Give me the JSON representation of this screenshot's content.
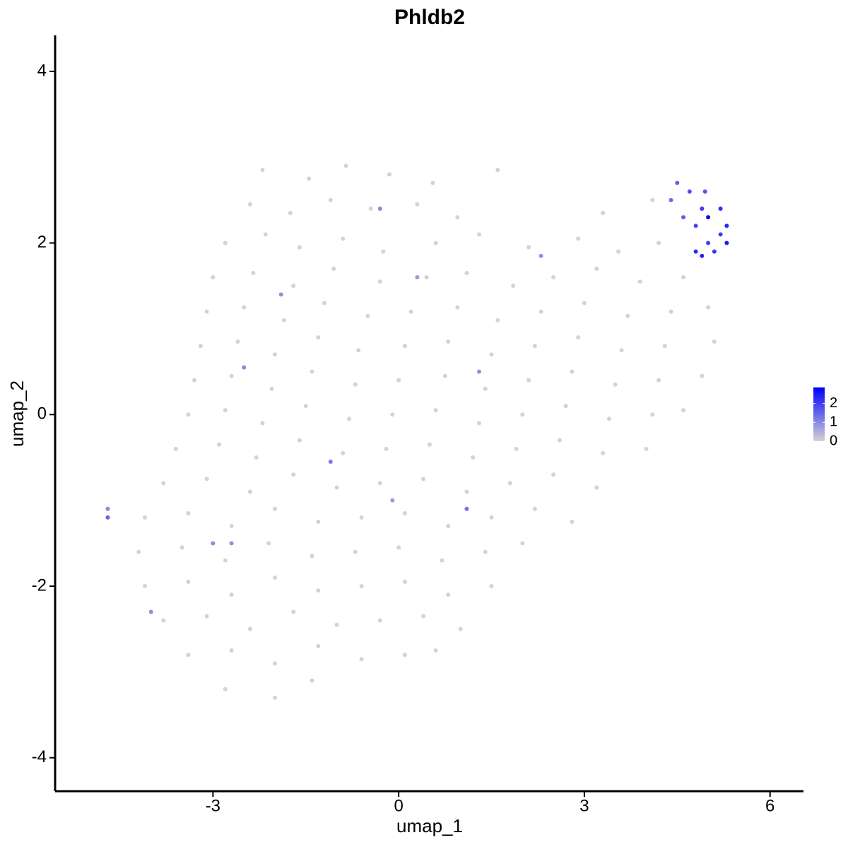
{
  "chart_data": {
    "type": "scatter",
    "title": "Phldb2",
    "x_label": "umap_1",
    "y_label": "umap_2",
    "xlim": [
      -5.55,
      6.54
    ],
    "ylim": [
      -4.39,
      4.42
    ],
    "xticks": [
      -3,
      0,
      3,
      6
    ],
    "yticks": [
      -4,
      -2,
      0,
      2,
      4
    ],
    "low_color": "#d3d3d3",
    "high_color": "#0000ff",
    "color_lim": [
      0,
      2.85
    ],
    "color_ticks": [
      0,
      1,
      2
    ],
    "x": [
      -2.2,
      -1.45,
      -0.85,
      -0.15,
      0.55,
      1.6,
      -2.4,
      -1.75,
      -1.1,
      -0.45,
      0.3,
      0.95,
      3.3,
      4.1,
      -2.8,
      -2.15,
      -1.6,
      -0.9,
      -0.25,
      0.6,
      1.3,
      2.1,
      2.9,
      3.55,
      4.2,
      -3.0,
      -2.35,
      -1.7,
      -1.05,
      -0.3,
      0.45,
      1.1,
      1.85,
      2.5,
      3.2,
      3.9,
      4.6,
      -3.1,
      -2.5,
      -1.85,
      -1.2,
      -0.5,
      0.2,
      0.95,
      1.6,
      2.3,
      3.0,
      3.7,
      4.4,
      5.0,
      -3.2,
      -2.6,
      -2.0,
      -1.3,
      -0.65,
      0.1,
      0.8,
      1.5,
      2.2,
      2.9,
      3.6,
      4.3,
      5.1,
      -3.3,
      -2.7,
      -2.05,
      -1.4,
      -0.7,
      0.0,
      0.75,
      1.4,
      2.1,
      2.8,
      3.5,
      4.2,
      4.9,
      -3.4,
      -2.8,
      -2.2,
      -1.5,
      -0.8,
      -0.1,
      0.6,
      1.3,
      2.0,
      2.7,
      3.4,
      4.1,
      4.6,
      -3.6,
      -2.9,
      -2.3,
      -1.6,
      -0.9,
      -0.2,
      0.5,
      1.2,
      1.9,
      2.6,
      3.3,
      4.0,
      -3.8,
      -3.1,
      -2.4,
      -1.7,
      -1.0,
      -0.3,
      0.4,
      1.1,
      1.8,
      2.5,
      3.2,
      -4.1,
      -3.4,
      -2.7,
      -2.0,
      -1.3,
      -0.6,
      0.1,
      0.8,
      1.5,
      2.2,
      2.8,
      -4.2,
      -3.5,
      -2.8,
      -2.1,
      -1.4,
      -0.7,
      0.0,
      0.7,
      1.4,
      2.0,
      -4.1,
      -3.4,
      -2.7,
      -2.0,
      -1.3,
      -0.6,
      0.1,
      0.8,
      1.5,
      -3.8,
      -3.1,
      -2.4,
      -1.7,
      -1.0,
      -0.3,
      0.4,
      1.0,
      -3.4,
      -2.7,
      -2.0,
      -1.3,
      -0.6,
      0.1,
      0.6,
      -2.8,
      -2.0,
      -1.4,
      4.5,
      4.7,
      4.9,
      5.0,
      5.2,
      5.3,
      5.3,
      5.1,
      4.9,
      4.8,
      4.6,
      4.4,
      5.0,
      4.95,
      5.2,
      4.8,
      -4.7,
      -4.7,
      -2.5,
      -1.1,
      1.1,
      -0.3,
      -1.9,
      2.3,
      0.3,
      -3.0,
      -4.0,
      1.3,
      -0.1,
      -2.7
    ],
    "y": [
      2.85,
      2.75,
      2.9,
      2.8,
      2.7,
      2.85,
      2.45,
      2.35,
      2.5,
      2.4,
      2.45,
      2.3,
      2.35,
      2.5,
      2.0,
      2.1,
      1.95,
      2.05,
      1.9,
      2.0,
      2.1,
      1.95,
      2.05,
      1.9,
      2.0,
      1.6,
      1.65,
      1.5,
      1.7,
      1.55,
      1.6,
      1.65,
      1.5,
      1.6,
      1.7,
      1.55,
      1.6,
      1.2,
      1.25,
      1.1,
      1.3,
      1.15,
      1.2,
      1.25,
      1.1,
      1.2,
      1.3,
      1.15,
      1.2,
      1.25,
      0.8,
      0.85,
      0.7,
      0.9,
      0.75,
      0.8,
      0.85,
      0.7,
      0.8,
      0.9,
      0.75,
      0.8,
      0.85,
      0.4,
      0.45,
      0.3,
      0.5,
      0.35,
      0.4,
      0.45,
      0.3,
      0.4,
      0.5,
      0.35,
      0.4,
      0.45,
      0.0,
      0.05,
      -0.1,
      0.1,
      -0.05,
      0.0,
      0.05,
      -0.1,
      0.0,
      0.1,
      -0.05,
      0.0,
      0.05,
      -0.4,
      -0.35,
      -0.5,
      -0.3,
      -0.45,
      -0.4,
      -0.35,
      -0.5,
      -0.4,
      -0.3,
      -0.45,
      -0.4,
      -0.8,
      -0.75,
      -0.9,
      -0.7,
      -0.85,
      -0.8,
      -0.75,
      -0.9,
      -0.8,
      -0.7,
      -0.85,
      -1.2,
      -1.15,
      -1.3,
      -1.1,
      -1.25,
      -1.2,
      -1.15,
      -1.3,
      -1.2,
      -1.1,
      -1.25,
      -1.6,
      -1.55,
      -1.7,
      -1.5,
      -1.65,
      -1.6,
      -1.55,
      -1.7,
      -1.6,
      -1.5,
      -2.0,
      -1.95,
      -2.1,
      -1.9,
      -2.05,
      -2.0,
      -1.95,
      -2.1,
      -2.0,
      -2.4,
      -2.35,
      -2.5,
      -2.3,
      -2.45,
      -2.4,
      -2.35,
      -2.5,
      -2.8,
      -2.75,
      -2.9,
      -2.7,
      -2.85,
      -2.8,
      -2.75,
      -3.2,
      -3.3,
      -3.1,
      2.7,
      2.6,
      2.4,
      2.3,
      2.4,
      2.2,
      2.0,
      1.9,
      1.85,
      2.2,
      2.3,
      2.5,
      2.0,
      2.6,
      2.1,
      1.9,
      -1.2,
      -1.1,
      0.55,
      -0.55,
      -1.1,
      2.4,
      1.4,
      1.85,
      1.6,
      -1.5,
      -2.3,
      0.5,
      -1.0,
      -1.5
    ],
    "expression": [
      0,
      0,
      0,
      0,
      0,
      0,
      0,
      0,
      0,
      0,
      0,
      0,
      0,
      0,
      0,
      0,
      0,
      0,
      0,
      0,
      0,
      0,
      0,
      0,
      0,
      0,
      0,
      0,
      0,
      0,
      0,
      0,
      0,
      0,
      0,
      0,
      0,
      0,
      0,
      0,
      0,
      0,
      0,
      0,
      0,
      0,
      0,
      0,
      0,
      0,
      0,
      0,
      0,
      0,
      0,
      0,
      0,
      0,
      0,
      0,
      0,
      0,
      0,
      0,
      0,
      0,
      0,
      0,
      0,
      0,
      0,
      0,
      0,
      0,
      0,
      0,
      0,
      0,
      0,
      0,
      0,
      0,
      0,
      0,
      0,
      0,
      0,
      0,
      0,
      0,
      0,
      0,
      0,
      0,
      0,
      0,
      0,
      0,
      0,
      0,
      0,
      0,
      0,
      0,
      0,
      0,
      0,
      0,
      0,
      0,
      0,
      0,
      0,
      0,
      0,
      0,
      0,
      0,
      0,
      0,
      0,
      0,
      0,
      0,
      0,
      0,
      0,
      0,
      0,
      0,
      0,
      0,
      0,
      0,
      0,
      0,
      0,
      0,
      0,
      0,
      0,
      0,
      0,
      0,
      0,
      0,
      0,
      0,
      0,
      0,
      0,
      0,
      0,
      0,
      0,
      0,
      0,
      0,
      0,
      0,
      1.5,
      1.8,
      2.0,
      2.8,
      2.2,
      2.3,
      2.5,
      2.1,
      2.4,
      1.9,
      1.6,
      1.4,
      2.0,
      1.7,
      2.0,
      2.3,
      1.5,
      1.0,
      1.0,
      1.2,
      1.3,
      1.0,
      0.9,
      0.9,
      0.8,
      1.0,
      0.9,
      0.9,
      0.8,
      0.9
    ]
  }
}
